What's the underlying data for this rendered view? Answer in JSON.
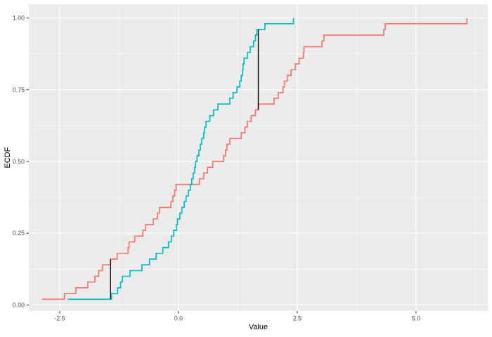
{
  "chart_data": {
    "type": "line",
    "subtype": "ecdf-step",
    "title": "",
    "xlabel": "Value",
    "ylabel": "ECDF",
    "grid": true,
    "legend": "none",
    "panel_bg": "#EBEBEB",
    "grid_color": "#FFFFFF",
    "tick_color": "#333333",
    "tick_label_color": "#4D4D4D",
    "xlim": [
      -3.15,
      6.51
    ],
    "ylim": [
      -0.021,
      1.048
    ],
    "x_ticks": {
      "values": [
        -2.5,
        0,
        2.5,
        5
      ],
      "labels": [
        "-2.5",
        "0.0",
        "2.5",
        "5.0"
      ]
    },
    "y_ticks": {
      "values": [
        0,
        0.25,
        0.5,
        0.75,
        1
      ],
      "labels": [
        "0.00",
        "0.25",
        "0.50",
        "0.75",
        "1.00"
      ]
    },
    "x_minor": [
      -1.25,
      1.25,
      3.75,
      6.25
    ],
    "y_minor": [
      0.125,
      0.375,
      0.625,
      0.875
    ],
    "series": [
      {
        "name": "series-1",
        "color": "#F8766D",
        "n": 50,
        "samples": [
          -2.87,
          -2.4,
          -2.16,
          -1.91,
          -1.76,
          -1.68,
          -1.6,
          -1.43,
          -1.29,
          -1.06,
          -1.04,
          -0.92,
          -0.75,
          -0.69,
          -0.53,
          -0.44,
          -0.4,
          -0.16,
          -0.12,
          -0.08,
          -0.05,
          0.44,
          0.53,
          0.61,
          0.72,
          0.95,
          0.99,
          1.02,
          1.08,
          1.32,
          1.4,
          1.45,
          1.53,
          1.62,
          1.68,
          2.01,
          2.1,
          2.2,
          2.23,
          2.29,
          2.37,
          2.46,
          2.54,
          2.63,
          2.64,
          3.02,
          3.06,
          4.32,
          4.35,
          6.07
        ]
      },
      {
        "name": "series-2",
        "color": "#00BFC4",
        "n": 50,
        "samples": [
          -2.33,
          -1.41,
          -1.28,
          -1.22,
          -1.18,
          -1.02,
          -0.77,
          -0.61,
          -0.47,
          -0.33,
          -0.21,
          -0.15,
          -0.1,
          -0.04,
          -0.02,
          0.03,
          0.07,
          0.12,
          0.16,
          0.21,
          0.25,
          0.28,
          0.31,
          0.34,
          0.36,
          0.39,
          0.43,
          0.46,
          0.49,
          0.53,
          0.55,
          0.58,
          0.66,
          0.74,
          0.83,
          1.08,
          1.15,
          1.23,
          1.29,
          1.32,
          1.35,
          1.36,
          1.38,
          1.45,
          1.51,
          1.58,
          1.62,
          1.65,
          1.82,
          2.42
        ]
      }
    ],
    "segments": [
      {
        "x": -1.43,
        "y0": 0.02,
        "y1": 0.16,
        "color": "#000000"
      },
      {
        "x": 1.68,
        "y0": 0.68,
        "y1": 0.96,
        "color": "#000000"
      }
    ]
  }
}
